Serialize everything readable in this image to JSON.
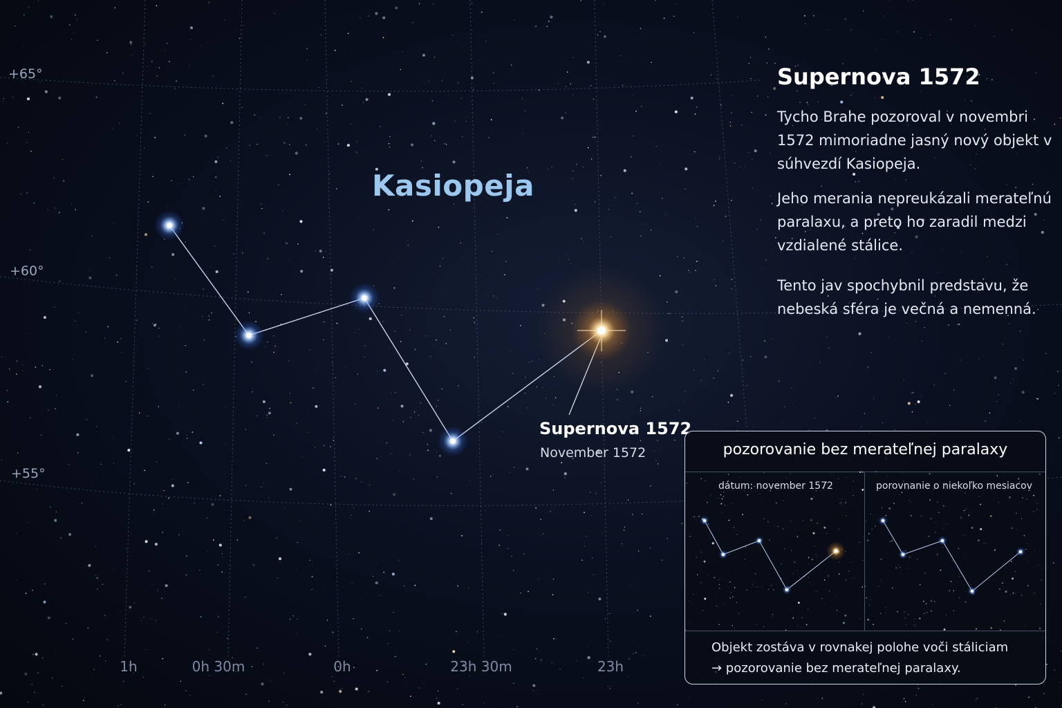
{
  "map": {
    "constellation_name": "Kasiopeja",
    "declination_labels": [
      "+65°",
      "+60°",
      "+55°"
    ],
    "right_ascension_labels": [
      "1h",
      "0h 30m",
      "0h",
      "23h 30m",
      "23h"
    ],
    "supernova_label": "Supernova 1572",
    "supernova_date": "November 1572",
    "colors": {
      "star": "#cfe6ff",
      "star_glow": "#5aa0ff",
      "supernova": "#ffd27a",
      "constellation_line": "#dbe8ff",
      "grid": "#4c5670"
    }
  },
  "info": {
    "title": "Supernova 1572",
    "paragraph_1": "Tycho Brahe pozoroval v novembri 1572 mimoriadne jasný nový objekt v súhvezdí Kasiopeja.",
    "paragraph_2": "Jeho merania nepreukázali merateľnú paralaxu, a preto ho zaradil medzi vzdialené stálice.",
    "paragraph_3": "Tento jav spochybnil predstavu, že nebeská sféra je večná a nemenná."
  },
  "panel": {
    "title": "pozorovanie bez merateľnej paralaxy",
    "left_label": "dátum: november 1572",
    "right_label": "porovnanie o niekoľko mesiacov",
    "footer_line_1": "Objekt zostáva v rovnakej polohe voči stáliciam",
    "footer_line_2": "→ pozorovanie bez merateľnej paralaxy."
  }
}
